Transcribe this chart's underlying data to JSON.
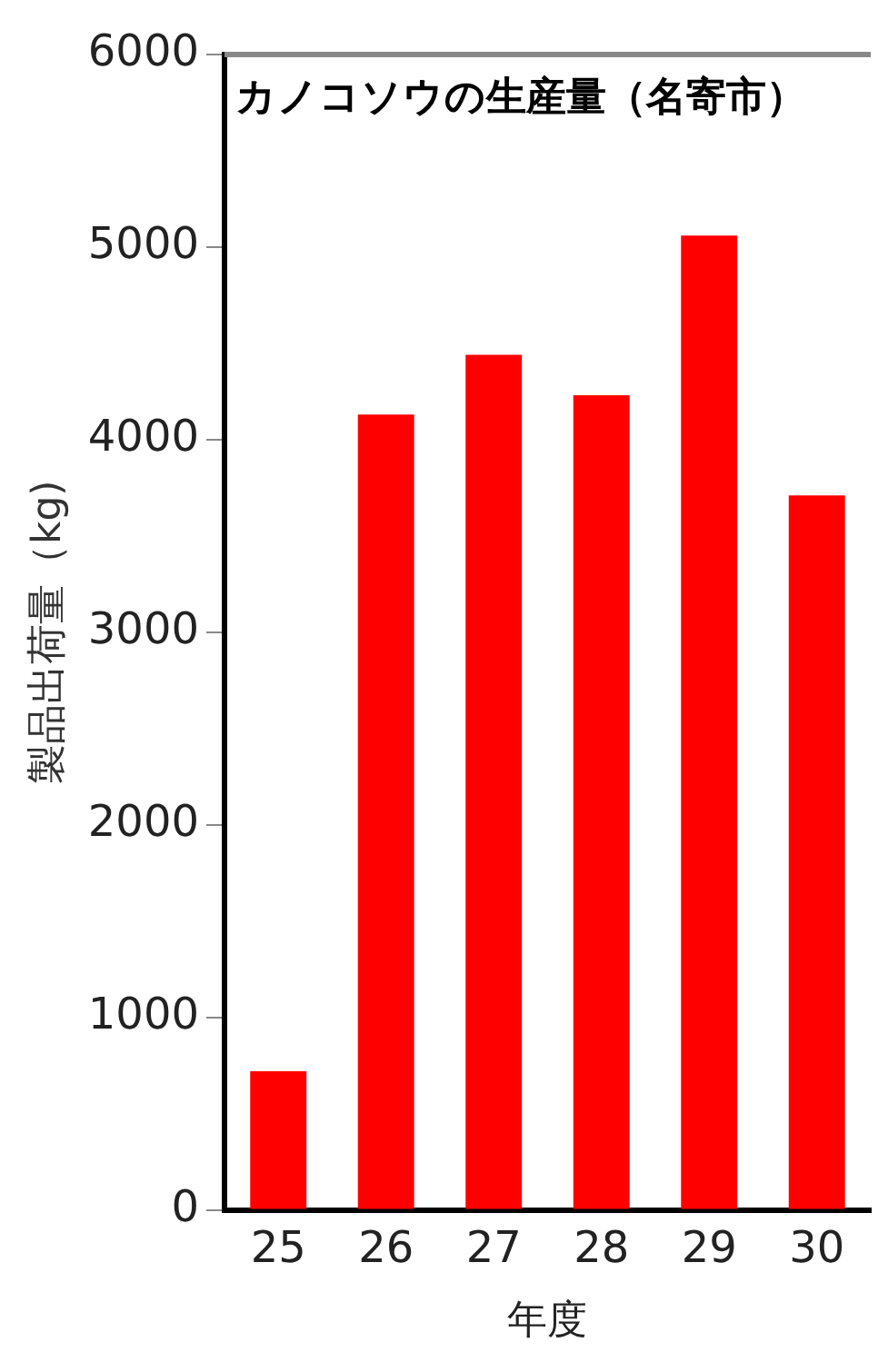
{
  "chart_data": {
    "type": "bar",
    "title": "カノコソウの生産量（名寄市）",
    "xlabel": "年度",
    "ylabel": "製品出荷量（kg)",
    "categories": [
      "25",
      "26",
      "27",
      "28",
      "29",
      "30"
    ],
    "values": [
      720,
      4130,
      4440,
      4230,
      5060,
      3710
    ],
    "color": "#ff0000",
    "ylim": [
      0,
      6000
    ],
    "yticks": [
      0,
      1000,
      2000,
      3000,
      4000,
      5000,
      6000
    ],
    "grid": false
  }
}
